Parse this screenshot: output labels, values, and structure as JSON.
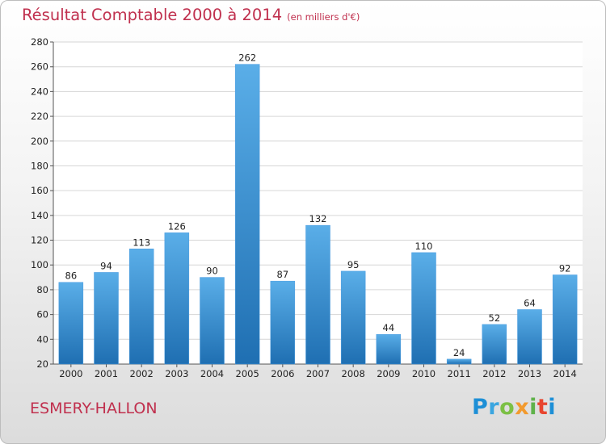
{
  "header": {
    "title": "Résultat Comptable 2000 à 2014",
    "unit": "(en milliers d'€)"
  },
  "footer": {
    "commune": "ESMERY-HALLON",
    "logo": "Proxiti"
  },
  "colors": {
    "title": "#c0304e",
    "bar_light": "#5aaee8",
    "bar_dark": "#1f6fb2"
  },
  "chart_data": {
    "type": "bar",
    "title": "Résultat Comptable 2000 à 2014",
    "subtitle": "(en milliers d'€)",
    "xlabel": "",
    "ylabel": "",
    "ylim": [
      20,
      280
    ],
    "yticks": [
      20,
      40,
      60,
      80,
      100,
      120,
      140,
      160,
      180,
      200,
      220,
      240,
      260,
      280
    ],
    "grid": true,
    "categories": [
      "2000",
      "2001",
      "2002",
      "2003",
      "2004",
      "2005",
      "2006",
      "2007",
      "2008",
      "2009",
      "2010",
      "2011",
      "2012",
      "2013",
      "2014"
    ],
    "values": [
      86,
      94,
      113,
      126,
      90,
      262,
      87,
      132,
      95,
      44,
      110,
      24,
      52,
      64,
      92
    ]
  }
}
